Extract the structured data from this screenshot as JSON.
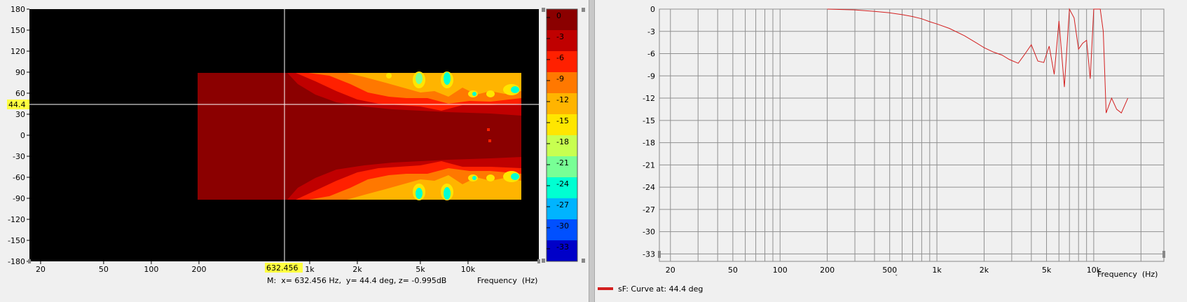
{
  "left_chart": {
    "y_ticks": [
      "180",
      "150",
      "120",
      "90",
      "60",
      "30",
      "0",
      "-30",
      "-60",
      "-90",
      "-120",
      "-150",
      "-180"
    ],
    "x_ticks": [
      "20",
      "50",
      "100",
      "200",
      "1k",
      "2k",
      "5k",
      "10k"
    ],
    "cursor_x_label": "632.456",
    "cursor_y_label": "44.4",
    "marker_readout": "M:  x= 632.456 Hz,  y= 44.4 deg, z= -0.995dB",
    "x_axis_label": "Frequency  (Hz)",
    "colorbar_labels": [
      "0",
      "-3",
      "-6",
      "-9",
      "-12",
      "-15",
      "-18",
      "-21",
      "-24",
      "-27",
      "-30",
      "-33"
    ],
    "colorbar_colors": [
      "#8b0000",
      "#c00000",
      "#ff2000",
      "#ff7800",
      "#ffb400",
      "#ffe600",
      "#c8ff50",
      "#78ff96",
      "#00ffd2",
      "#00b4ff",
      "#0050ff",
      "#0000c8",
      "#000090"
    ]
  },
  "right_chart": {
    "y_ticks": [
      "0",
      "-3",
      "-6",
      "-9",
      "-12",
      "-15",
      "-18",
      "-21",
      "-24",
      "-27",
      "-30",
      "-33"
    ],
    "x_ticks": [
      "20",
      "50",
      "100",
      "200",
      "500",
      "1k",
      "2k",
      "5k",
      "10k"
    ],
    "x_axis_label": "Frequency  (Hz)",
    "legend_label": "sF: Curve at: 44.4 deg",
    "line_color": "#d32020"
  },
  "chart_data": [
    {
      "type": "heatmap",
      "title": "",
      "xlabel": "Frequency  (Hz)",
      "ylabel": "",
      "x_scale": "log",
      "xlim": [
        17,
        28000
      ],
      "ylim": [
        -180,
        180
      ],
      "z_unit": "dB",
      "z_range": [
        -33,
        0
      ],
      "data_extent": {
        "x": [
          190,
          21000
        ],
        "y": [
          -90,
          90
        ]
      },
      "cursor": {
        "x": 632.456,
        "y": 44.4,
        "z": -0.995
      }
    },
    {
      "type": "line",
      "title": "",
      "xlabel": "Frequency  (Hz)",
      "ylabel": "",
      "x_scale": "log",
      "xlim": [
        17,
        28000
      ],
      "ylim": [
        -34,
        0
      ],
      "grid": true,
      "legend": "bottom-left",
      "series": [
        {
          "name": "sF: Curve at: 44.4 deg",
          "x": [
            200,
            300,
            400,
            500,
            600,
            700,
            800,
            900,
            1000,
            1200,
            1500,
            1800,
            2000,
            2300,
            2600,
            2900,
            3300,
            3600,
            4000,
            4400,
            4800,
            5200,
            5600,
            6000,
            6500,
            7000,
            7500,
            8000,
            8500,
            9000,
            9500,
            10000,
            10500,
            11000,
            11500,
            12000,
            13000,
            14000,
            15000,
            16500
          ],
          "y": [
            0,
            -0.1,
            -0.3,
            -0.5,
            -0.75,
            -1.0,
            -1.3,
            -1.7,
            -2.0,
            -2.6,
            -3.6,
            -4.6,
            -5.2,
            -5.8,
            -6.2,
            -6.8,
            -7.3,
            -6.2,
            -4.8,
            -7.0,
            -7.2,
            -5.0,
            -8.8,
            -1.6,
            -10.5,
            0.2,
            -1.2,
            -5.4,
            -4.6,
            -4.2,
            -9.4,
            0,
            0,
            0,
            -3.0,
            -14.0,
            -12.0,
            -13.5,
            -14.0,
            -12.0
          ]
        }
      ]
    }
  ]
}
